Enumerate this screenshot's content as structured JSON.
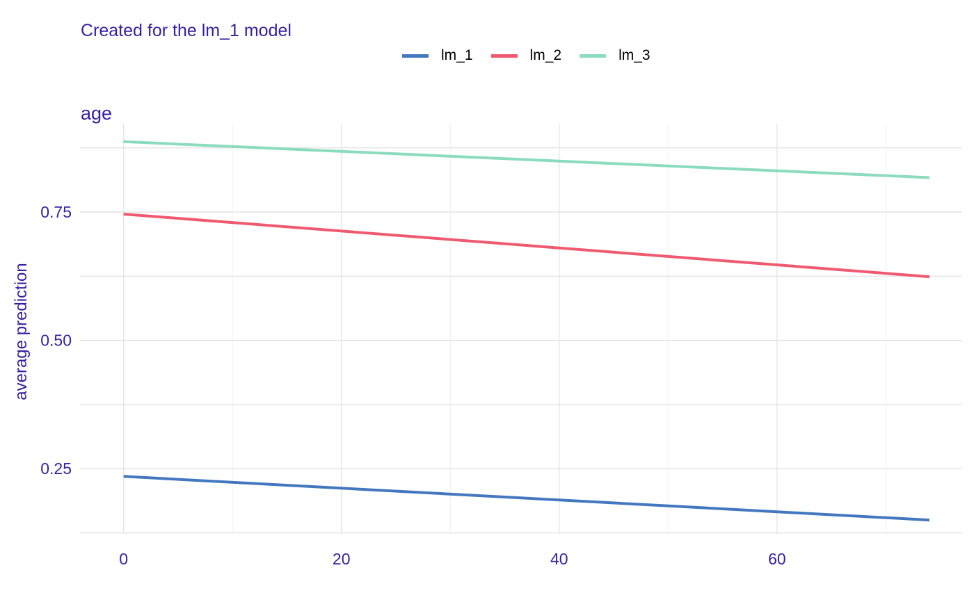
{
  "chart_data": {
    "type": "line",
    "title": "",
    "subtitle": "Created for the lm_1 model",
    "panel_title": "age",
    "xlabel": "",
    "ylabel": "average prediction",
    "xlim": [
      -4,
      77
    ],
    "ylim": [
      0.123,
      0.922
    ],
    "x_ticks": [
      0,
      20,
      40,
      60
    ],
    "y_ticks": [
      0.25,
      0.5,
      0.75
    ],
    "x_ticks_labels": [
      "0",
      "20",
      "40",
      "60"
    ],
    "y_ticks_labels": [
      "0.25",
      "0.50",
      "0.75"
    ],
    "grid": true,
    "legend_position": "top",
    "series": [
      {
        "name": "lm_1",
        "color": "#4378bf",
        "x": [
          0,
          74
        ],
        "y": [
          0.235,
          0.15
        ]
      },
      {
        "name": "lm_2",
        "color": "#f05a71",
        "x": [
          0,
          74
        ],
        "y": [
          0.746,
          0.624
        ]
      },
      {
        "name": "lm_3",
        "color": "#8bdcbe",
        "x": [
          0,
          74
        ],
        "y": [
          0.887,
          0.817
        ]
      }
    ]
  }
}
